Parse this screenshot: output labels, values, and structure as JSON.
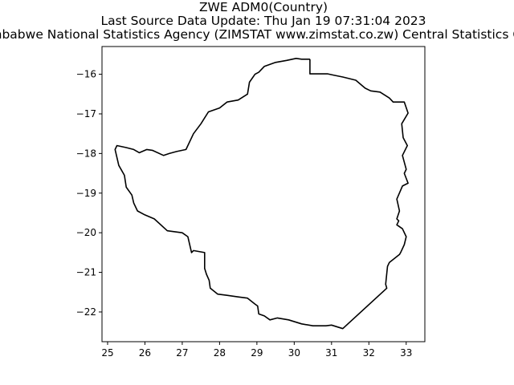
{
  "figure": {
    "title_lines": [
      "ZWE ADM0(Country)",
      "Last Source Data Update: Thu Jan 19 07:31:04 2023",
      "Zimbabwe National Statistics Agency (ZIMSTAT www.zimstat.co.zw) Central Statistics Office"
    ]
  },
  "chart_data": {
    "type": "line",
    "title": "ZWE ADM0(Country)",
    "xlim": [
      24.85,
      33.5
    ],
    "ylim": [
      -22.75,
      -15.3
    ],
    "x_ticks": [
      25,
      26,
      27,
      28,
      29,
      30,
      31,
      32,
      33
    ],
    "y_ticks": [
      -16,
      -17,
      -18,
      -19,
      -20,
      -21,
      -22
    ],
    "x_tick_labels": [
      "25",
      "26",
      "27",
      "28",
      "29",
      "30",
      "31",
      "32",
      "33"
    ],
    "y_tick_labels": [
      "−16",
      "−17",
      "−18",
      "−19",
      "−20",
      "−21",
      "−22"
    ],
    "grid": false,
    "legend": "none",
    "line_color": "#000000",
    "series": [
      {
        "x": [
          30.42,
          30.42,
          30.9,
          31.05,
          31.3,
          31.65,
          31.9,
          32.05,
          32.3,
          32.55,
          32.65,
          32.95,
          33.05,
          32.88,
          32.92,
          33.03,
          32.9,
          33.0,
          32.95,
          33.05,
          32.9,
          32.75,
          32.82,
          32.75,
          32.8,
          32.75,
          32.9,
          33.0,
          32.95,
          32.85,
          32.82,
          32.55,
          32.5,
          32.45,
          32.48,
          31.3,
          31.0,
          30.85,
          30.5,
          30.2,
          29.85,
          29.55,
          29.35,
          29.2,
          29.05,
          29.02,
          28.95,
          28.75,
          28.5,
          28.2,
          27.95,
          27.75,
          27.72,
          27.65,
          27.6,
          27.6,
          27.3,
          27.25,
          27.15,
          27.0,
          26.6,
          26.25,
          26.0,
          25.8,
          25.7,
          25.65,
          25.5,
          25.45,
          25.3,
          25.2,
          25.25,
          25.5,
          25.7,
          25.85,
          26.05,
          26.2,
          26.5,
          26.65,
          26.85,
          27.1,
          27.3,
          27.5,
          27.7,
          28.0,
          28.2,
          28.5,
          28.75,
          28.8,
          28.95,
          29.05,
          29.2,
          29.5,
          29.8,
          30.05,
          30.2,
          30.42
        ],
        "y": [
          -15.62,
          -15.99,
          -15.99,
          -16.02,
          -16.07,
          -16.15,
          -16.35,
          -16.42,
          -16.45,
          -16.6,
          -16.7,
          -16.7,
          -16.98,
          -17.25,
          -17.6,
          -17.8,
          -18.05,
          -18.4,
          -18.5,
          -18.75,
          -18.82,
          -19.15,
          -19.45,
          -19.65,
          -19.7,
          -19.8,
          -19.9,
          -20.1,
          -20.3,
          -20.5,
          -20.55,
          -20.75,
          -20.85,
          -21.3,
          -21.4,
          -22.42,
          -22.33,
          -22.35,
          -22.35,
          -22.3,
          -22.2,
          -22.15,
          -22.2,
          -22.1,
          -22.05,
          -21.85,
          -21.8,
          -21.65,
          -21.62,
          -21.58,
          -21.55,
          -21.4,
          -21.2,
          -21.05,
          -20.9,
          -20.5,
          -20.45,
          -20.5,
          -20.1,
          -20.0,
          -19.95,
          -19.65,
          -19.55,
          -19.45,
          -19.25,
          -19.05,
          -18.85,
          -18.55,
          -18.3,
          -17.9,
          -17.8,
          -17.85,
          -17.9,
          -17.98,
          -17.9,
          -17.92,
          -18.05,
          -18.0,
          -17.95,
          -17.9,
          -17.5,
          -17.25,
          -16.95,
          -16.85,
          -16.7,
          -16.65,
          -16.5,
          -16.2,
          -16.0,
          -15.95,
          -15.8,
          -15.7,
          -15.65,
          -15.6,
          -15.62,
          -15.62
        ]
      }
    ]
  }
}
